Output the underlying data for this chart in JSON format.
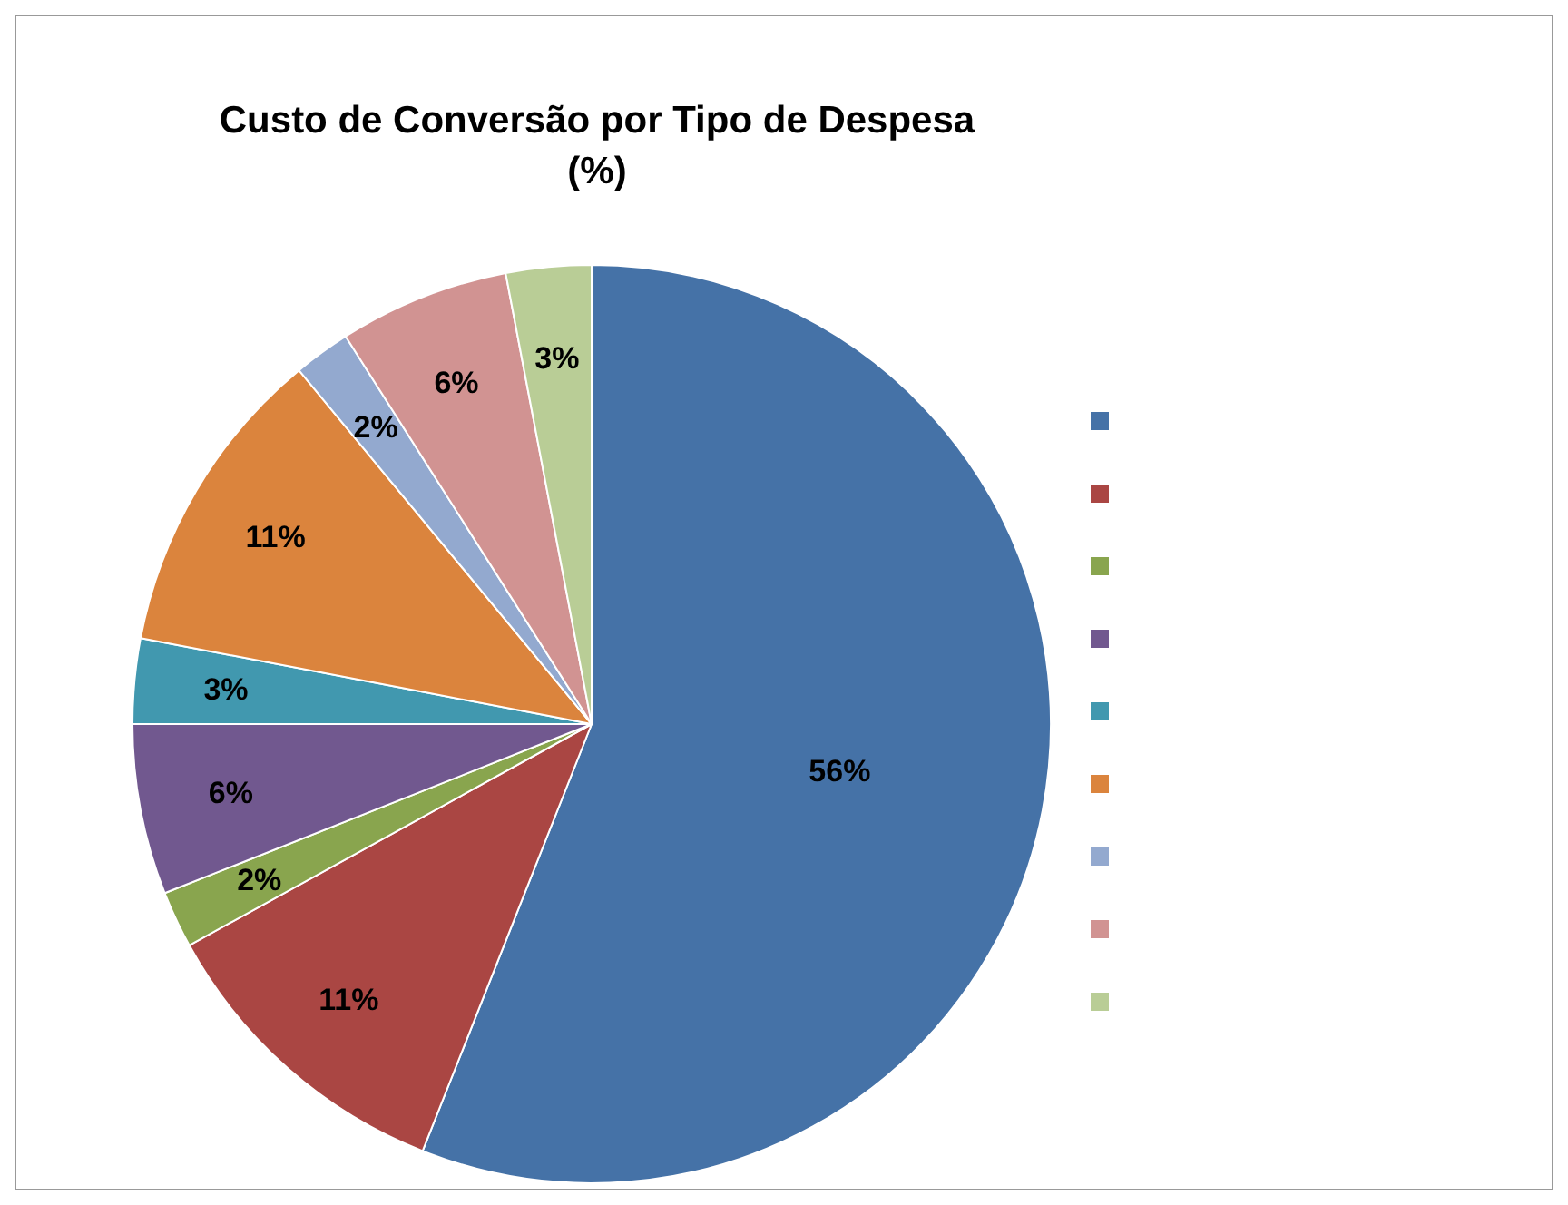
{
  "chart_data": {
    "type": "pie",
    "title": "Custo de Conversão por Tipo de Despesa\n(%)",
    "categories": [
      null,
      null,
      null,
      null,
      null,
      null,
      null,
      null,
      null
    ],
    "values": [
      56,
      11,
      2,
      6,
      3,
      11,
      2,
      6,
      3
    ],
    "value_labels": [
      "56%",
      "11%",
      "2%",
      "6%",
      "3%",
      "11%",
      "2%",
      "6%",
      "3%"
    ],
    "colors": [
      "#4572a7",
      "#aa4643",
      "#89a54e",
      "#71588f",
      "#4198af",
      "#db843d",
      "#93a9cf",
      "#d19392",
      "#b9cd96"
    ]
  }
}
